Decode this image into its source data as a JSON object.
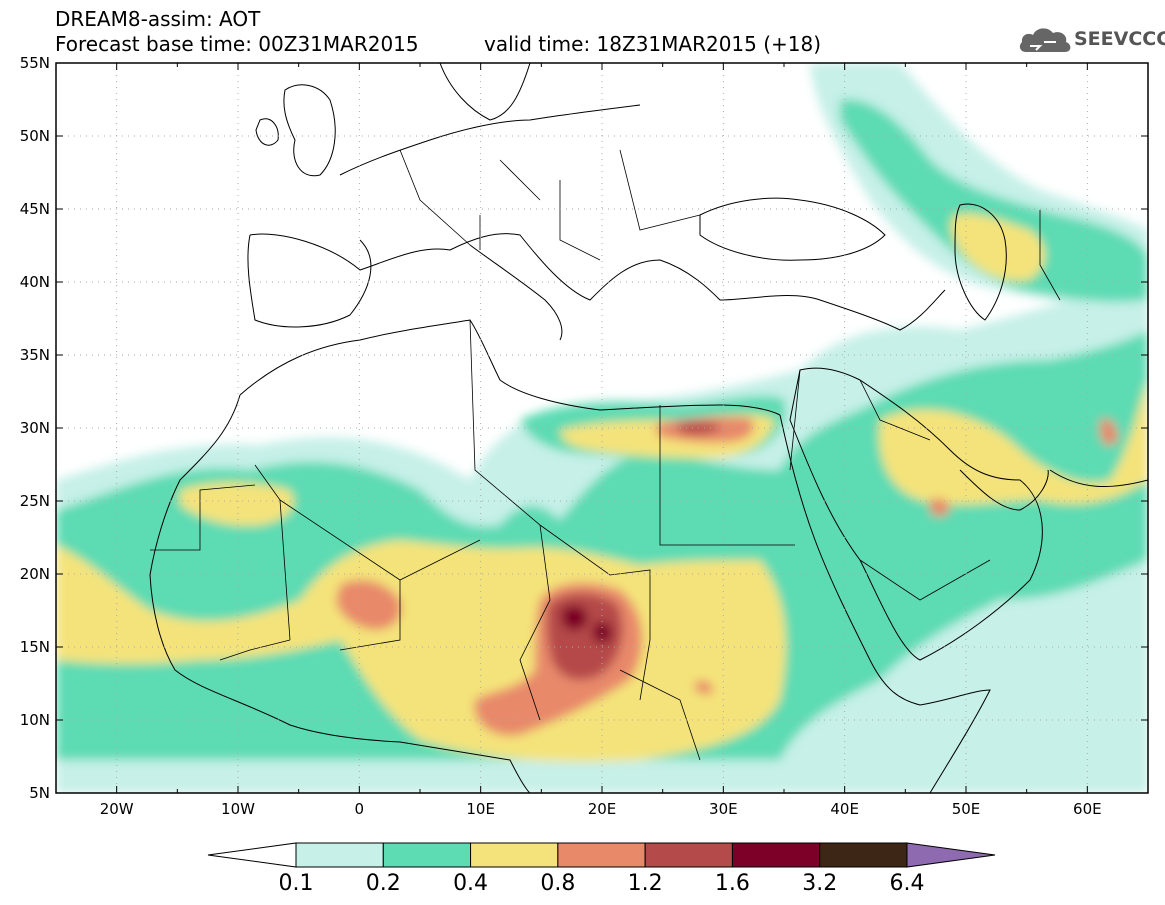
{
  "header": {
    "title_line1": "DREAM8-assim: AOT",
    "title_line2": "Forecast base time: 00Z31MAR2015",
    "valid_time": "valid time: 18Z31MAR2015 (+18)"
  },
  "logo": {
    "text": "SEEVCCC",
    "icon": "cloud-logo-icon"
  },
  "map": {
    "lon_range": [
      -25,
      65
    ],
    "lat_range": [
      5,
      55
    ],
    "lat_ticks": [
      "5N",
      "10N",
      "15N",
      "20N",
      "25N",
      "30N",
      "35N",
      "40N",
      "45N",
      "50N",
      "55N"
    ],
    "lon_ticks": [
      "20W",
      "10W",
      "0",
      "10E",
      "20E",
      "30E",
      "40E",
      "50E",
      "60E"
    ]
  },
  "colorbar": {
    "labels": [
      "0.1",
      "0.2",
      "0.4",
      "0.8",
      "1.2",
      "1.6",
      "3.2",
      "6.4"
    ],
    "colors": [
      "#ffffff",
      "#c6f0e8",
      "#5ddbb3",
      "#f4e37a",
      "#e8896a",
      "#b54a4a",
      "#7d0028",
      "#3d2616",
      "#8e6bb0"
    ]
  }
}
